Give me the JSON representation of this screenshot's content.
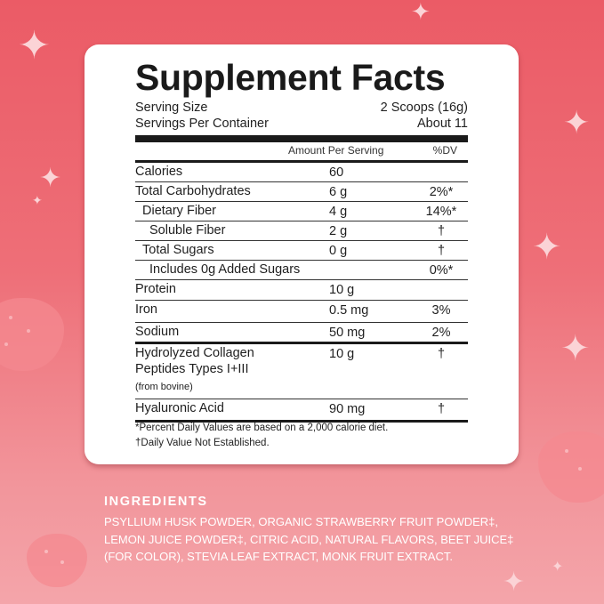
{
  "panel": {
    "title": "Supplement Facts",
    "serving_size_label": "Serving Size",
    "serving_size_value": "2 Scoops (16g)",
    "servings_label": "Servings Per Container",
    "servings_value": "About 11",
    "col_amount": "Amount Per Serving",
    "col_dv": "%DV",
    "rows": [
      {
        "label": "Calories",
        "amount": "60",
        "dv": ""
      },
      {
        "label": "Total Carbohydrates",
        "amount": "6 g",
        "dv": "2%*"
      },
      {
        "label": "Dietary Fiber",
        "amount": "4 g",
        "dv": "14%*"
      },
      {
        "label": "Soluble Fiber",
        "amount": "2 g",
        "dv": "†"
      },
      {
        "label": "Total Sugars",
        "amount": "0 g",
        "dv": "†"
      },
      {
        "label": "Includes 0g Added Sugars",
        "amount": "",
        "dv": "0%*"
      },
      {
        "label": "Protein",
        "amount": "10 g",
        "dv": ""
      },
      {
        "label": "Iron",
        "amount": "0.5 mg",
        "dv": "3%"
      },
      {
        "label": "Sodium",
        "amount": "50 mg",
        "dv": "2%"
      },
      {
        "label": "Hydrolyzed Collagen",
        "label2": "Peptides Types I+III",
        "sub": "(from bovine)",
        "amount": "10 g",
        "dv": "†"
      },
      {
        "label": "Hyaluronic Acid",
        "amount": "90 mg",
        "dv": "†"
      }
    ],
    "footnote1": "*Percent Daily Values are based on a 2,000 calorie diet.",
    "footnote2": "†Daily Value Not Established."
  },
  "ingredients": {
    "heading": "INGREDIENTS",
    "line1": "PSYLLIUM HUSK POWDER, ORGANIC STRAWBERRY FRUIT POWDER‡,",
    "line2": "LEMON JUICE POWDER‡, CITRIC ACID, NATURAL FLAVORS, BEET JUICE‡",
    "line3": "(FOR COLOR), STEVIA LEAF EXTRACT, MONK FRUIT EXTRACT."
  },
  "colors": {
    "background_top": "#eb5b66",
    "background_bottom": "#f4a5aa",
    "card": "#ffffff",
    "text": "#1a1a1a"
  },
  "icons": [
    "sparkle-icon",
    "strawberry-icon"
  ]
}
